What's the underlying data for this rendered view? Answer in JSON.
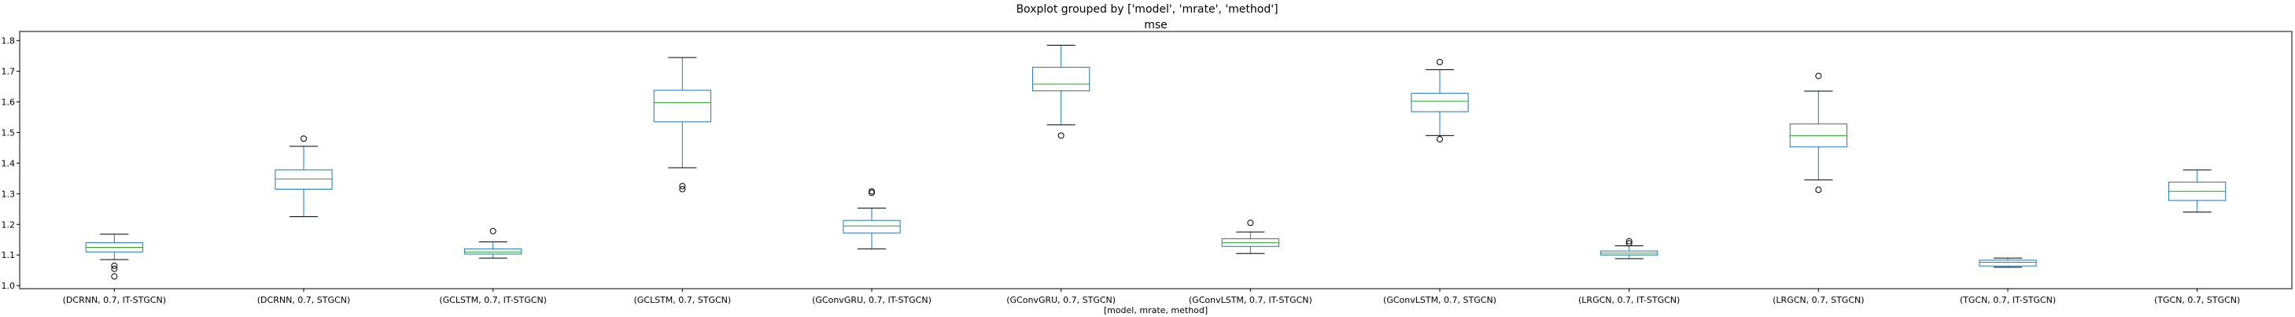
{
  "chart_data": {
    "type": "boxplot",
    "suptitle": "Boxplot grouped by ['model', 'mrate', 'method']",
    "title": "mse",
    "xlabel": "[model, mrate, method]",
    "ylabel": "",
    "ylim": [
      0.99,
      1.83
    ],
    "yticks": [
      "1.0",
      "1.1",
      "1.2",
      "1.3",
      "1.4",
      "1.5",
      "1.6",
      "1.7",
      "1.8"
    ],
    "grid": false,
    "legend": "none",
    "colors": {
      "box": "#1f77b4",
      "median": "#2ca02c",
      "whisker": "#000000",
      "flier": "#000000"
    },
    "categories": [
      "(DCRNN, 0.7, IT-STGCN)",
      "(DCRNN, 0.7, STGCN)",
      "(GCLSTM, 0.7, IT-STGCN)",
      "(GCLSTM, 0.7, STGCN)",
      "(GConvGRU, 0.7, IT-STGCN)",
      "(GConvGRU, 0.7, STGCN)",
      "(GConvLSTM, 0.7, IT-STGCN)",
      "(GConvLSTM, 0.7, STGCN)",
      "(LRGCN, 0.7, IT-STGCN)",
      "(LRGCN, 0.7, STGCN)",
      "(TGCN, 0.7, IT-STGCN)",
      "(TGCN, 0.7, STGCN)"
    ],
    "boxes": [
      {
        "whislo": 1.085,
        "q1": 1.11,
        "med": 1.125,
        "q3": 1.14,
        "whishi": 1.168,
        "fliers": [
          1.065,
          1.055,
          1.03
        ]
      },
      {
        "whislo": 1.225,
        "q1": 1.315,
        "med": 1.348,
        "q3": 1.378,
        "whishi": 1.455,
        "fliers": [
          1.48
        ]
      },
      {
        "whislo": 1.09,
        "q1": 1.103,
        "med": 1.11,
        "q3": 1.12,
        "whishi": 1.143,
        "fliers": [
          1.178
        ]
      },
      {
        "whislo": 1.385,
        "q1": 1.535,
        "med": 1.598,
        "q3": 1.638,
        "whishi": 1.745,
        "fliers": [
          1.325,
          1.315
        ]
      },
      {
        "whislo": 1.12,
        "q1": 1.172,
        "med": 1.195,
        "q3": 1.213,
        "whishi": 1.253,
        "fliers": [
          1.303,
          1.308
        ]
      },
      {
        "whislo": 1.525,
        "q1": 1.636,
        "med": 1.658,
        "q3": 1.713,
        "whishi": 1.785,
        "fliers": [
          1.49
        ]
      },
      {
        "whislo": 1.105,
        "q1": 1.128,
        "med": 1.14,
        "q3": 1.153,
        "whishi": 1.175,
        "fliers": [
          1.205
        ]
      },
      {
        "whislo": 1.49,
        "q1": 1.568,
        "med": 1.602,
        "q3": 1.628,
        "whishi": 1.705,
        "fliers": [
          1.73,
          1.478
        ]
      },
      {
        "whislo": 1.088,
        "q1": 1.1,
        "med": 1.106,
        "q3": 1.113,
        "whishi": 1.13,
        "fliers": [
          1.138,
          1.145
        ]
      },
      {
        "whislo": 1.345,
        "q1": 1.453,
        "med": 1.49,
        "q3": 1.528,
        "whishi": 1.635,
        "fliers": [
          1.685,
          1.313
        ]
      },
      {
        "whislo": 1.06,
        "q1": 1.064,
        "med": 1.076,
        "q3": 1.083,
        "whishi": 1.09,
        "fliers": []
      },
      {
        "whislo": 1.24,
        "q1": 1.278,
        "med": 1.308,
        "q3": 1.338,
        "whishi": 1.378,
        "fliers": []
      }
    ]
  }
}
